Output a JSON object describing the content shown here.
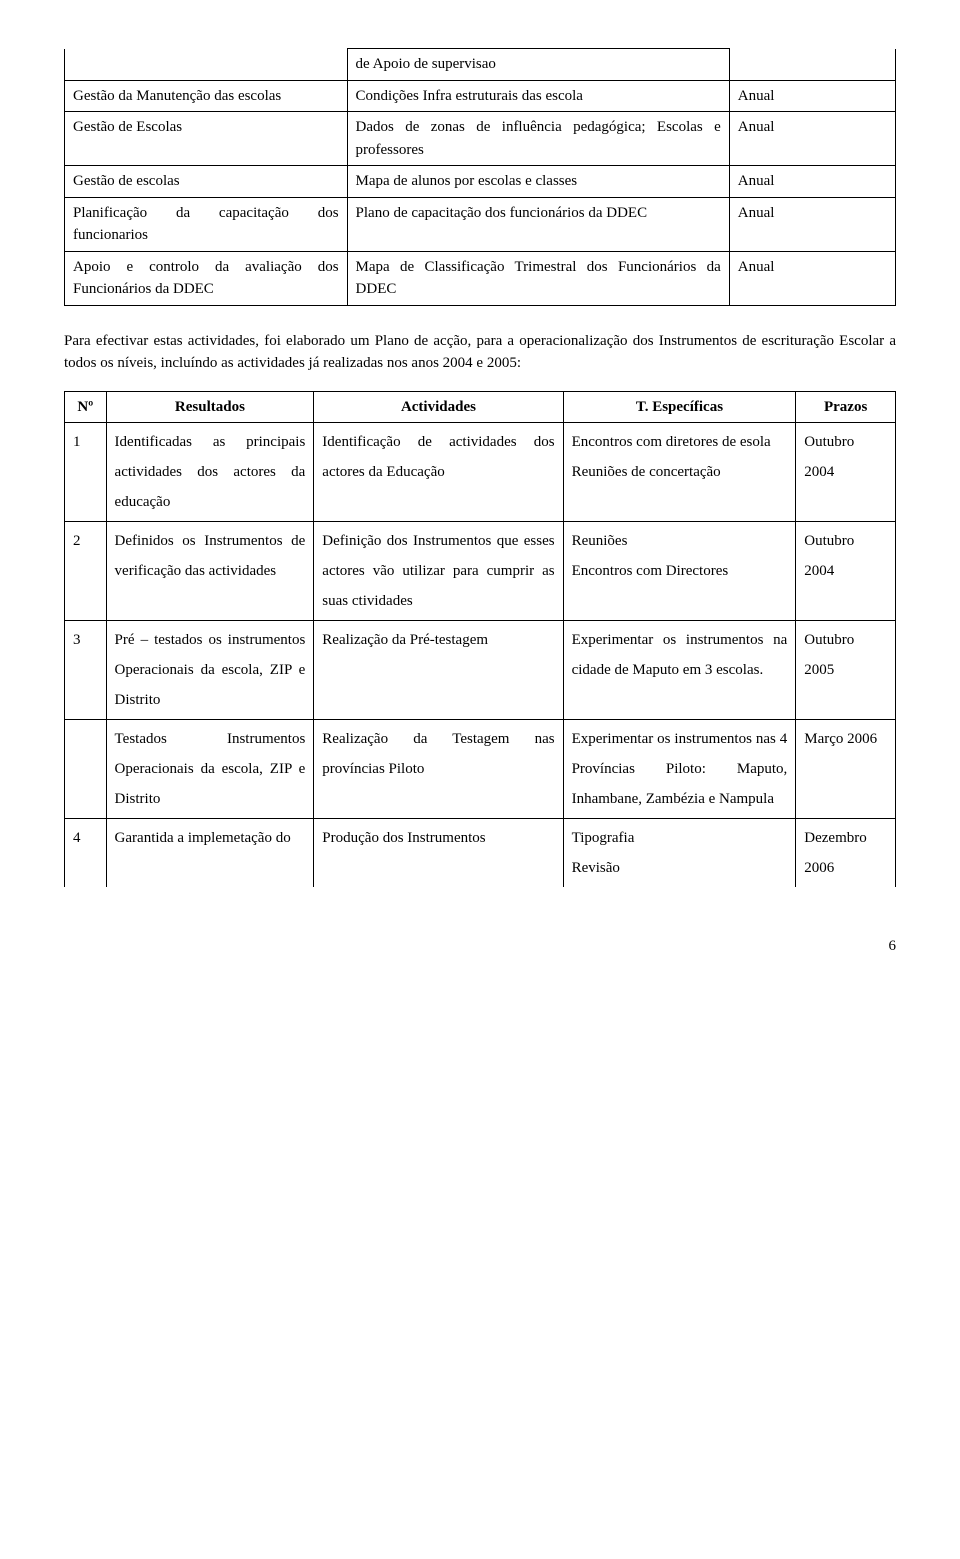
{
  "table1": {
    "rows": [
      {
        "c1": "",
        "c2": "de Apoio de supervisao",
        "c3": "",
        "c1_notop": true,
        "c3_notop": true
      },
      {
        "c1": "Gestão da Manutenção das escolas",
        "c2": "Condições Infra estruturais das escola",
        "c3": "Anual"
      },
      {
        "c1": "Gestão de Escolas",
        "c2": "Dados de zonas de influência pedagógica; Escolas e professores",
        "c3": "Anual"
      },
      {
        "c1": "Gestão de escolas",
        "c2": "Mapa de alunos por escolas e classes",
        "c3": "Anual"
      },
      {
        "c1": "Planificação da capacitação dos funcionarios",
        "c2": "Plano de capacitação dos funcionários da DDEC",
        "c3": "Anual"
      },
      {
        "c1": "Apoio e controlo da avaliação dos Funcionários da DDEC",
        "c2": "Mapa de Classificação Trimestral dos Funcionários da DDEC",
        "c3": "Anual"
      }
    ]
  },
  "paragraph": "Para efectivar estas actividades, foi elaborado um Plano de acção, para a operacionalização dos Instrumentos de escrituração Escolar a todos os níveis, incluíndo as actividades já realizadas nos anos 2004 e 2005:",
  "table2": {
    "headers": {
      "num": "Nº",
      "res": "Resultados",
      "act": "Actividades",
      "task": "T. Específicas",
      "prz": "Prazos"
    },
    "rows": [
      {
        "num": "1",
        "res": "Identificadas as principais actividades dos actores da educação",
        "act": "Identificação de actividades dos actores da Educação",
        "task": "Encontros com diretores de esola\nReuniões de concertação",
        "prz": "Outubro 2004"
      },
      {
        "num": "2",
        "res": "Definidos os Instrumentos de verificação das actividades",
        "act": "Definição dos Instrumentos que esses actores vão utilizar para cumprir as suas ctividades",
        "task": "Reuniões\nEncontros com Directores",
        "prz": "Outubro 2004"
      },
      {
        "num": "3",
        "res": "Pré – testados os instrumentos Operacionais da escola, ZIP e Distrito",
        "act": "Realização da Pré-testagem",
        "task": "Experimentar os instrumentos na cidade de Maputo em 3 escolas.",
        "prz": "Outubro 2005"
      },
      {
        "num": "",
        "res": "Testados Instrumentos Operacionais da escola, ZIP e Distrito",
        "act": "Realização da Testagem nas províncias Piloto",
        "task": "Experimentar os instrumentos nas 4 Províncias Piloto: Maputo, Inhambane, Zambézia e Nampula",
        "prz": "Março 2006"
      },
      {
        "num": "4",
        "res": "Garantida a implemetação do",
        "act": "Produção dos Instrumentos",
        "task": "Tipografia\nRevisão",
        "prz": "Dezembro 2006",
        "nobottom": true
      }
    ]
  },
  "page_number": "6"
}
